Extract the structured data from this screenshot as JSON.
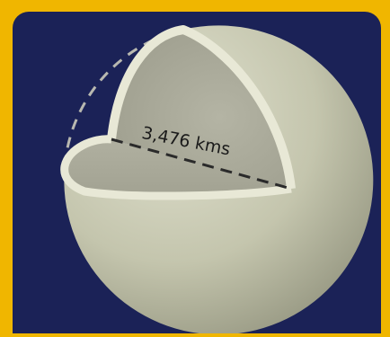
{
  "diagram": {
    "diameter_label": "3,476 kms",
    "colors": {
      "frame": "#f0b600",
      "background": "#1b2257",
      "sphere_surface": "#c8c9b4",
      "cut_face": "#a8a898",
      "rim": "#e8e8d6",
      "dashed_outline": "#b8b8b0",
      "diameter_line": "#2a2a2a"
    }
  }
}
